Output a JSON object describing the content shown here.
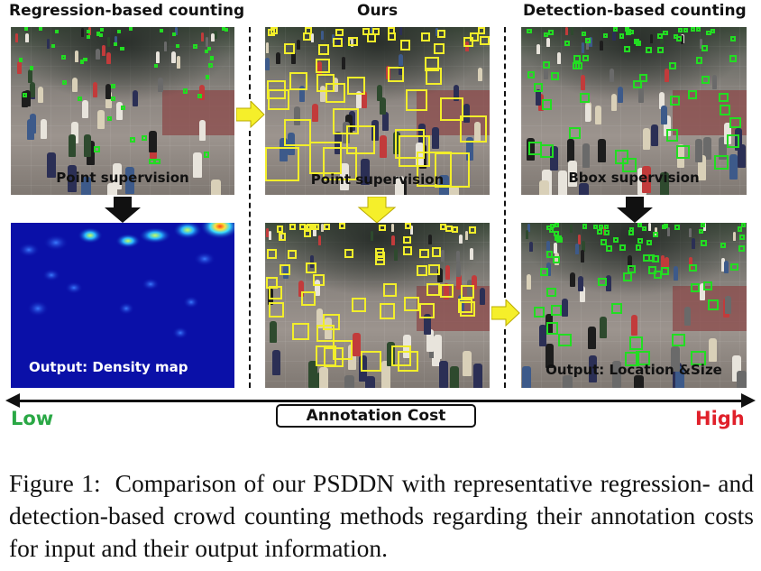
{
  "columns": {
    "regression": {
      "title": "Regression-based counting",
      "input_label": "Point supervision",
      "output_label": "Output: Density map"
    },
    "ours": {
      "title": "Ours",
      "input_label": "Point supervision"
    },
    "detection": {
      "title": "Detection-based counting",
      "input_label": "Bbox supervision",
      "output_label": "Output: Location &Size"
    }
  },
  "cost_axis": {
    "label": "Annotation Cost",
    "low_label": "Low",
    "high_label": "High",
    "low_color": "#2aa845",
    "high_color": "#e0202a"
  },
  "colors": {
    "point_marker": "#22dd22",
    "box_marker_ours": "#f2ee2a",
    "arrow_black": "#111111",
    "arrow_yellow": "#f5ef2a",
    "density_background": "#0a10a8"
  },
  "caption": {
    "figure_label": "Figure 1:",
    "text": "Comparison of our PSDDN with representative regression- and detection-based crowd counting methods regarding their annotation costs for input and their output information."
  }
}
